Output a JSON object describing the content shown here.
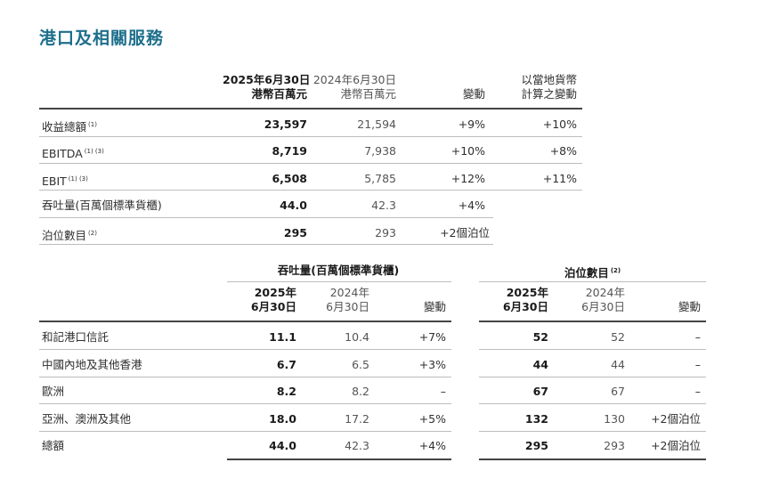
{
  "title": "港口及相關服務",
  "summary": {
    "headers": {
      "col1": [
        "2025年6月30日",
        "港幣百萬元"
      ],
      "col2": [
        "2024年6月30日",
        "港幣百萬元"
      ],
      "col3": "變動",
      "col4": [
        "以當地貨幣",
        "計算之變動"
      ]
    },
    "rows": [
      {
        "label": "收益總額",
        "note": "(1)",
        "v2025": "23,597",
        "v2024": "21,594",
        "change": "+9%",
        "local": "+10%"
      },
      {
        "label": "EBITDA",
        "note": "(1) (3)",
        "v2025": "8,719",
        "v2024": "7,938",
        "change": "+10%",
        "local": "+8%"
      },
      {
        "label": "EBIT",
        "note": "(1) (3)",
        "v2025": "6,508",
        "v2024": "5,785",
        "change": "+12%",
        "local": "+11%"
      },
      {
        "label": "吞吐量(百萬個標準貨櫃)",
        "note": "",
        "v2025": "44.0",
        "v2024": "42.3",
        "change": "+4%",
        "local": ""
      },
      {
        "label": "泊位數目",
        "note": "(2)",
        "v2025": "295",
        "v2024": "293",
        "change": "+2個泊位",
        "local": ""
      }
    ]
  },
  "detail": {
    "group1": {
      "title": "吞吐量(百萬個標準貨櫃)",
      "note": ""
    },
    "group2": {
      "title": "泊位數目",
      "note": "(2)"
    },
    "subheaders": {
      "y2025": [
        "2025年",
        "6月30日"
      ],
      "y2024": [
        "2024年",
        "6月30日"
      ],
      "change": "變動"
    },
    "rows": [
      {
        "label": "和記港口信託",
        "t2025": "11.1",
        "t2024": "10.4",
        "tchg": "+7%",
        "b2025": "52",
        "b2024": "52",
        "bchg": "–"
      },
      {
        "label": "中國內地及其他香港",
        "t2025": "6.7",
        "t2024": "6.5",
        "tchg": "+3%",
        "b2025": "44",
        "b2024": "44",
        "bchg": "–"
      },
      {
        "label": "歐洲",
        "t2025": "8.2",
        "t2024": "8.2",
        "tchg": "–",
        "b2025": "67",
        "b2024": "67",
        "bchg": "–"
      },
      {
        "label": "亞洲、澳洲及其他",
        "t2025": "18.0",
        "t2024": "17.2",
        "tchg": "+5%",
        "b2025": "132",
        "b2024": "130",
        "bchg": "+2個泊位"
      },
      {
        "label": "總額",
        "t2025": "44.0",
        "t2024": "42.3",
        "tchg": "+4%",
        "b2025": "295",
        "b2024": "293",
        "bchg": "+2個泊位"
      }
    ]
  }
}
